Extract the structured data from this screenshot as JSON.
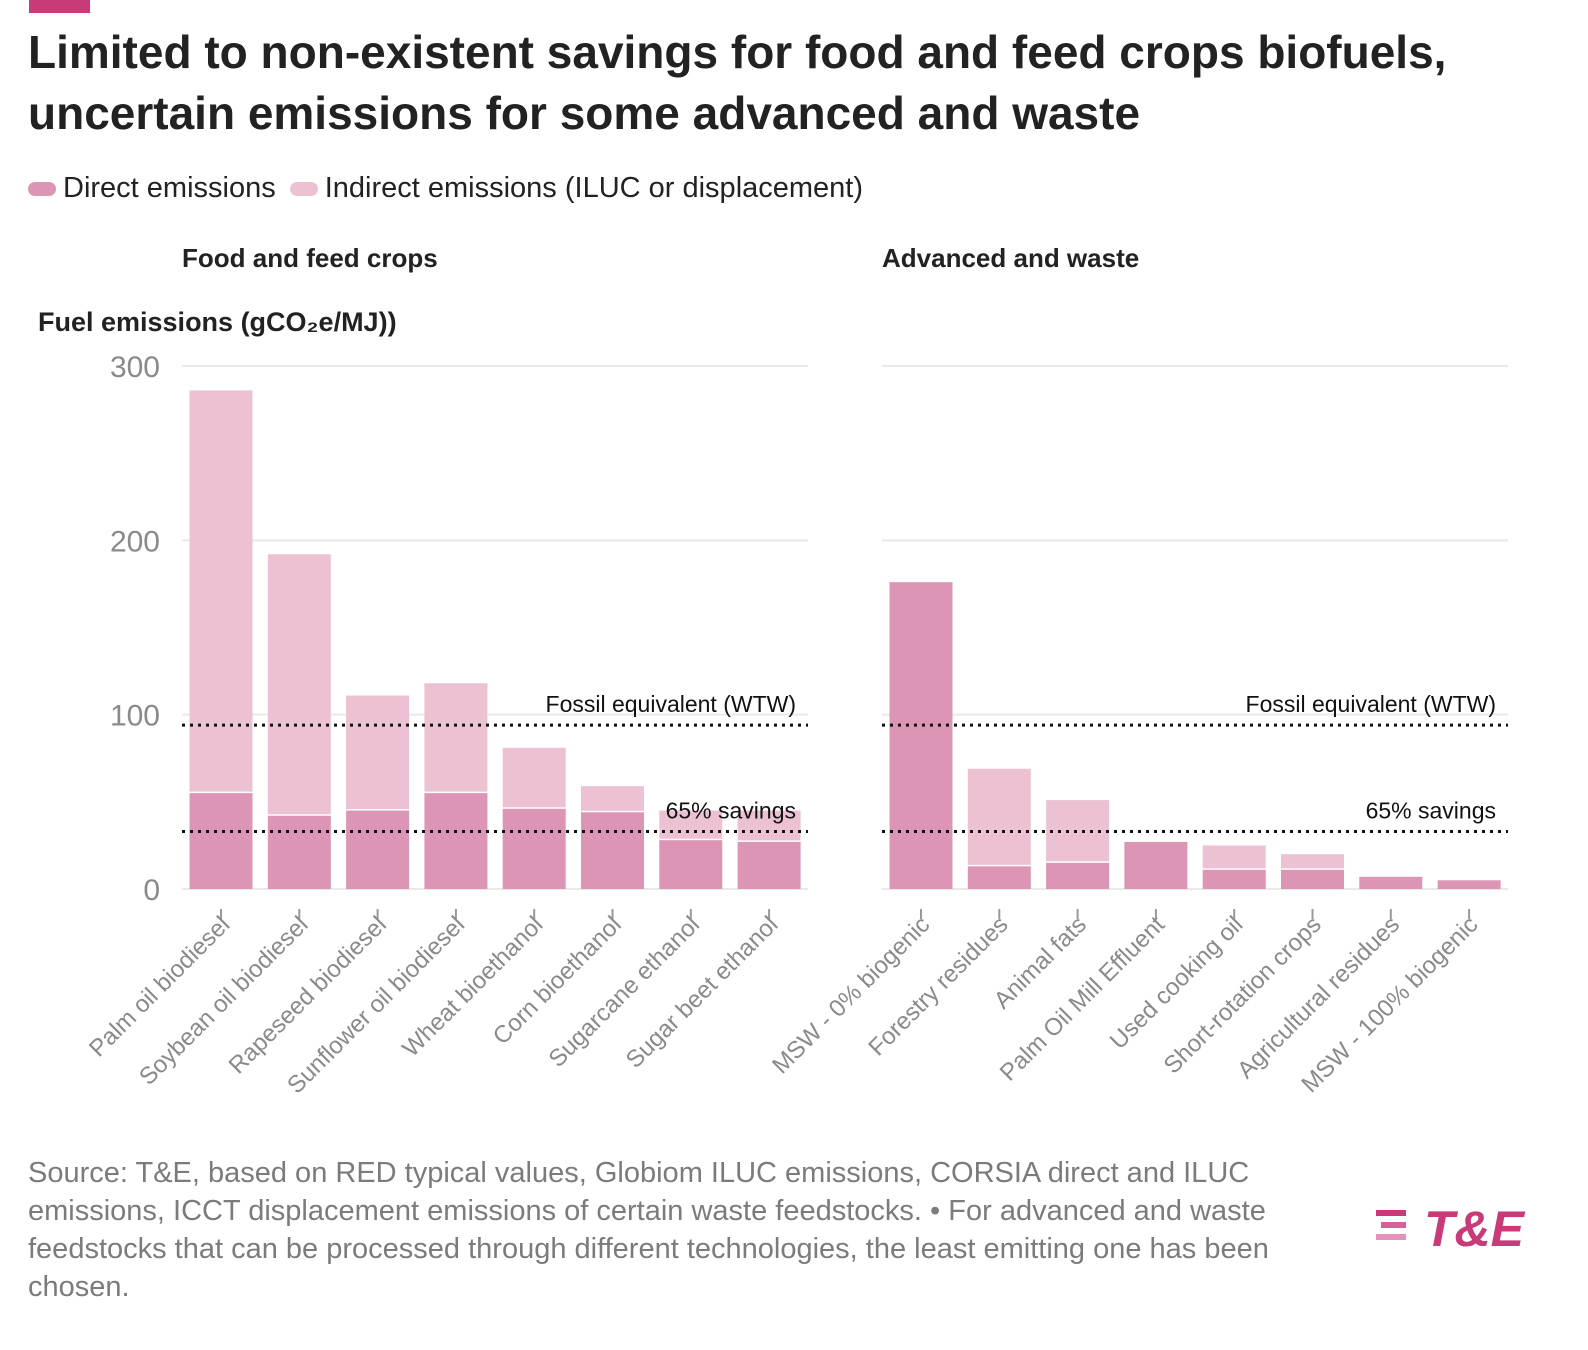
{
  "title": "Limited to non-existent savings for food and feed crops biofuels, uncertain emissions for some advanced and waste",
  "legend": {
    "direct": "Direct emissions",
    "indirect": "Indirect emissions (ILUC or displacement)"
  },
  "colors": {
    "accent": "#c93a78",
    "direct": "#dc95b5",
    "indirect": "#edc1d4",
    "grid": "#e9e9e9",
    "reference_line": "#111111"
  },
  "footer": {
    "source": "Source: T&E, based on RED typical values, Globiom ILUC emissions, CORSIA direct and ILUC emissions, ICCT displacement emissions of certain waste feedstocks.",
    "separator": " • ",
    "note": "For advanced and waste feedstocks that can be processed through different technologies, the least emitting one has been chosen."
  },
  "logo": {
    "text": "T&E"
  },
  "chart_data": [
    {
      "type": "bar",
      "stacked": true,
      "panel_title": "Food and feed crops",
      "ylabel": "Fuel emissions (gCO₂e/MJ))",
      "ylim": [
        0,
        300
      ],
      "yticks": [
        0,
        100,
        200,
        300
      ],
      "grid": true,
      "categories": [
        "Palm oil biodiesel",
        "Soybean oil biodiesel",
        "Rapeseed biodiesel",
        "Sunflower oil biodiesel",
        "Wheat bioethanol",
        "Corn bioethanol",
        "Sugarcane ethanol",
        "Sugar beet ethanol"
      ],
      "series": [
        {
          "name": "Direct emissions",
          "values": [
            55,
            42,
            45,
            55,
            46,
            44,
            28,
            27
          ]
        },
        {
          "name": "Indirect emissions (ILUC or displacement)",
          "values": [
            231,
            150,
            66,
            63,
            35,
            15,
            17,
            18
          ]
        }
      ],
      "reference_lines": [
        {
          "label": "Fossil equivalent (WTW)",
          "value": 94
        },
        {
          "label": "65% savings",
          "value": 33
        }
      ]
    },
    {
      "type": "bar",
      "stacked": true,
      "panel_title": "Advanced and waste",
      "ylim": [
        0,
        300
      ],
      "yticks": [
        0,
        100,
        200,
        300
      ],
      "grid": true,
      "categories": [
        "MSW - 0% biogenic",
        "Forestry residues",
        "Animal fats",
        "Palm Oil Mill Effluent",
        "Used cooking oil",
        "Short-rotation crops",
        "Agricultural residues",
        "MSW - 100% biogenic"
      ],
      "series": [
        {
          "name": "Direct emissions",
          "values": [
            176,
            13,
            15,
            27,
            11,
            11,
            7,
            5
          ]
        },
        {
          "name": "Indirect emissions (ILUC or displacement)",
          "values": [
            0,
            56,
            36,
            0,
            14,
            9,
            0,
            0
          ]
        }
      ],
      "reference_lines": [
        {
          "label": "Fossil equivalent (WTW)",
          "value": 94
        },
        {
          "label": "65% savings",
          "value": 33
        }
      ]
    }
  ]
}
